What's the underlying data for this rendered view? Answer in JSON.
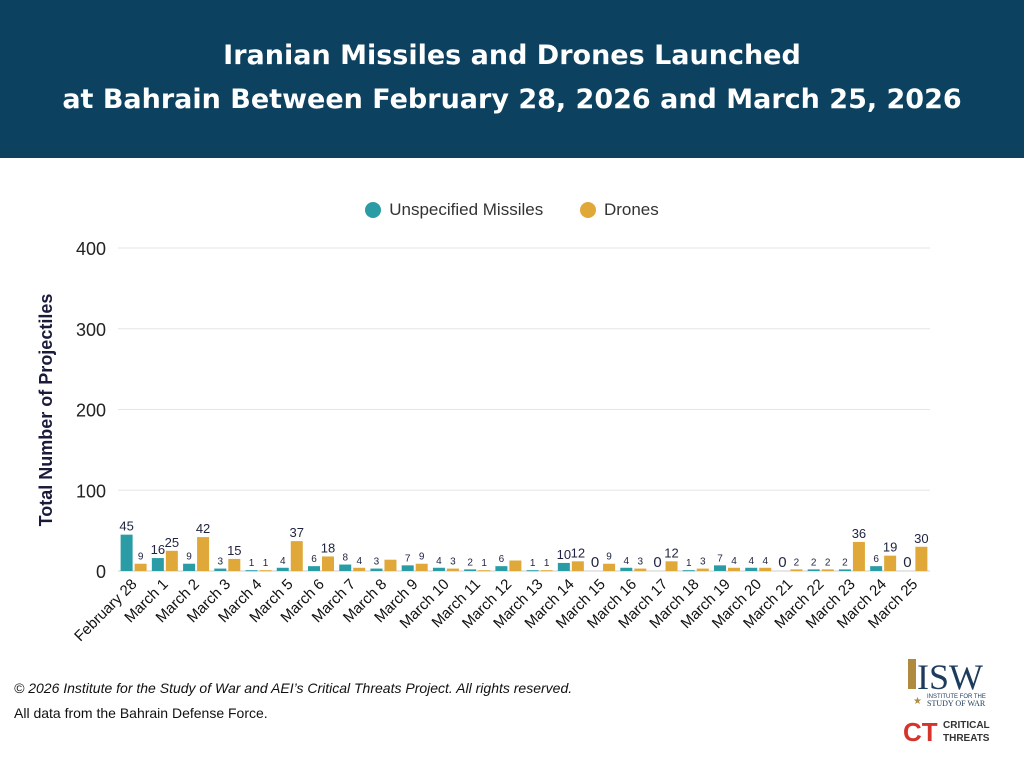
{
  "header": {
    "title_line1": "Iranian Missiles and Drones Launched",
    "title_line2": "at Bahrain Between February 28, 2026 and March 25, 2026"
  },
  "chart_data": {
    "type": "bar",
    "ylabel": "Total Number of Projectiles",
    "ylim": [
      0,
      400
    ],
    "yticks": [
      0,
      100,
      200,
      300,
      400
    ],
    "grid": true,
    "legend_placement": "top",
    "categories": [
      "February 28",
      "March 1",
      "March 2",
      "March 3",
      "March 4",
      "March 5",
      "March 6",
      "March 7",
      "March 8",
      "March 9",
      "March 10",
      "March 11",
      "March 12",
      "March 13",
      "March 14",
      "March 15",
      "March 16",
      "March 17",
      "March 18",
      "March 19",
      "March 20",
      "March 21",
      "March 22",
      "March 23",
      "March 24",
      "March 25"
    ],
    "series": [
      {
        "name": "Unspecified Missiles",
        "color": "#2a9ca6",
        "values": [
          45,
          16,
          9,
          3,
          1,
          4,
          6,
          8,
          3,
          7,
          4,
          2,
          6,
          1,
          10,
          0,
          4,
          0,
          1,
          7,
          4,
          0,
          2,
          2,
          6,
          0
        ],
        "labels_shown": [
          true,
          true,
          true,
          true,
          true,
          true,
          true,
          true,
          true,
          true,
          true,
          true,
          true,
          true,
          true,
          true,
          true,
          true,
          true,
          true,
          true,
          true,
          true,
          true,
          true,
          true
        ]
      },
      {
        "name": "Drones",
        "color": "#e0a838",
        "values": [
          9,
          25,
          42,
          15,
          1,
          37,
          18,
          4,
          14,
          9,
          3,
          1,
          13,
          1,
          12,
          9,
          3,
          12,
          3,
          4,
          4,
          2,
          2,
          36,
          19,
          30
        ],
        "labels_shown": [
          true,
          true,
          true,
          true,
          true,
          true,
          true,
          true,
          false,
          true,
          true,
          true,
          false,
          true,
          true,
          true,
          true,
          true,
          true,
          true,
          true,
          true,
          true,
          true,
          true,
          true
        ]
      }
    ]
  },
  "footer": {
    "copyright": "© 2026 Institute for the Study of War and AEI’s Critical Threats Project. All rights reserved.",
    "source": "All data from the Bahrain Defense Force."
  },
  "logos": {
    "isw": "ISW",
    "isw_sub": "INSTITUTE FOR THE STUDY OF WAR",
    "ct": "CT",
    "ct_text": "CRITICAL THREATS"
  }
}
